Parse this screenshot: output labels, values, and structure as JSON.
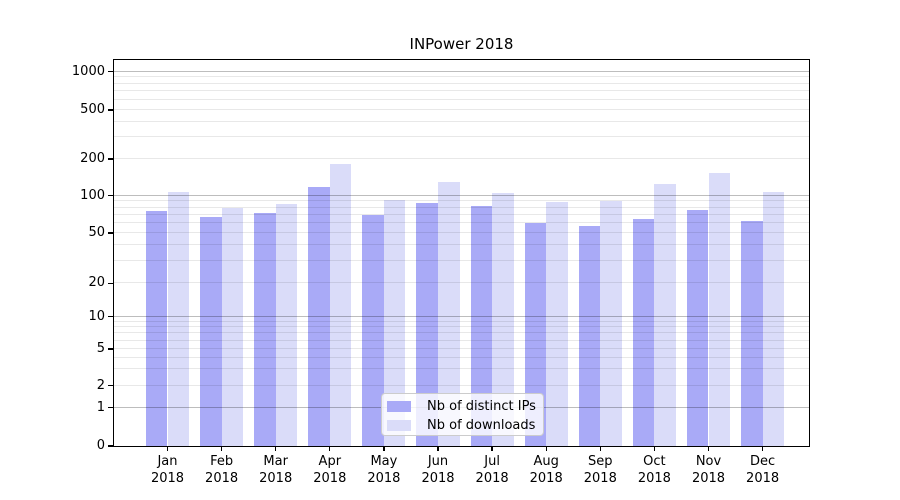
{
  "title": "INPower 2018",
  "chart_data": {
    "type": "bar",
    "title": "INPower 2018",
    "categories": [
      "Jan 2018",
      "Feb 2018",
      "Mar 2018",
      "Apr 2018",
      "May 2018",
      "Jun 2018",
      "Jul 2018",
      "Aug 2018",
      "Sep 2018",
      "Oct 2018",
      "Nov 2018",
      "Dec 2018"
    ],
    "month_labels": [
      {
        "month": "Jan",
        "year": "2018"
      },
      {
        "month": "Feb",
        "year": "2018"
      },
      {
        "month": "Mar",
        "year": "2018"
      },
      {
        "month": "Apr",
        "year": "2018"
      },
      {
        "month": "May",
        "year": "2018"
      },
      {
        "month": "Jun",
        "year": "2018"
      },
      {
        "month": "Jul",
        "year": "2018"
      },
      {
        "month": "Aug",
        "year": "2018"
      },
      {
        "month": "Sep",
        "year": "2018"
      },
      {
        "month": "Oct",
        "year": "2018"
      },
      {
        "month": "Nov",
        "year": "2018"
      },
      {
        "month": "Dec",
        "year": "2018"
      }
    ],
    "series": [
      {
        "name": "Nb of distinct IPs",
        "key": "distinct-ips",
        "color": "#a9aaf7",
        "values": [
          75,
          67,
          72,
          118,
          70,
          88,
          83,
          60,
          57,
          65,
          76,
          63
        ]
      },
      {
        "name": "Nb of downloads",
        "key": "downloads",
        "color": "#dadcf9",
        "values": [
          107,
          79,
          86,
          182,
          92,
          130,
          105,
          89,
          90,
          125,
          155,
          107
        ]
      }
    ],
    "xlabel": "",
    "ylabel": "",
    "yscale": "symlog",
    "ylim": [
      0,
      1240
    ],
    "yticks": [
      0,
      1,
      2,
      5,
      10,
      20,
      50,
      100,
      200,
      500,
      1000
    ],
    "grid": "horizontal major (1,10,100,1000) + minor log subdivisions",
    "legend_position": "lower center inside plot"
  },
  "legend": {
    "items": [
      {
        "label": "Nb of distinct IPs"
      },
      {
        "label": "Nb of downloads"
      }
    ]
  },
  "colors": {
    "ips_bar": "#a9aaf7",
    "downloads_bar": "#dadcf9",
    "grid_major": "#bdbdbd",
    "grid_minor": "#e8e8e8",
    "axis": "#000000",
    "legend_border": "#cccccc"
  }
}
